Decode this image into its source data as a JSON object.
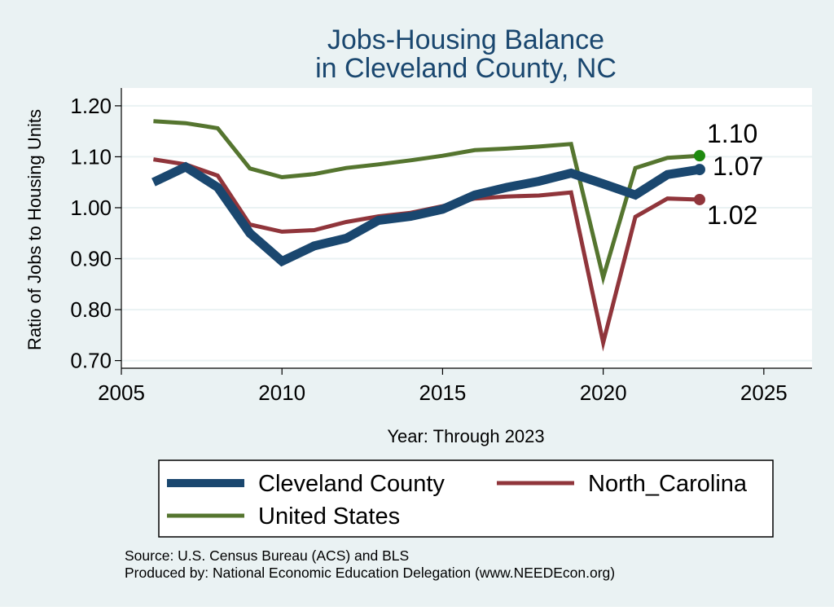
{
  "chart_data": {
    "type": "line",
    "title": [
      "Jobs-Housing Balance",
      "in Cleveland County, NC"
    ],
    "xlabel": "Year: Through 2023",
    "ylabel": "Ratio of Jobs to Housing Units",
    "xlim": [
      2005,
      2026.5
    ],
    "ylim": [
      0.685,
      1.235
    ],
    "xticks": [
      2005,
      2010,
      2015,
      2020,
      2025
    ],
    "yticks": [
      0.7,
      0.8,
      0.9,
      1.0,
      1.1,
      1.2
    ],
    "ytick_labels": [
      "0.70",
      "0.80",
      "0.90",
      "1.00",
      "1.10",
      "1.20"
    ],
    "grid": true,
    "x": [
      2006,
      2007,
      2008,
      2009,
      2010,
      2011,
      2012,
      2013,
      2014,
      2015,
      2016,
      2017,
      2018,
      2019,
      2020,
      2021,
      2022,
      2023
    ],
    "series": [
      {
        "name": "Cleveland County",
        "color": "#1A476F",
        "line_style": "thick",
        "values": [
          1.05,
          1.08,
          1.04,
          0.95,
          0.895,
          0.925,
          0.94,
          0.975,
          0.983,
          0.997,
          1.025,
          1.04,
          1.052,
          1.068,
          1.047,
          1.025,
          1.065,
          1.075
        ],
        "end_label": "1.07",
        "end_marker_color": "#1A476F"
      },
      {
        "name": "North_Carolina",
        "color": "#90353B",
        "line_style": "medium",
        "values": [
          1.095,
          1.085,
          1.063,
          0.967,
          0.953,
          0.956,
          0.972,
          0.983,
          0.99,
          1.003,
          1.018,
          1.022,
          1.024,
          1.03,
          0.735,
          0.982,
          1.018,
          1.016
        ],
        "end_label": "1.02",
        "end_marker_color": "#90353B"
      },
      {
        "name": "United States",
        "color": "#55752F",
        "line_style": "medium",
        "values": [
          1.17,
          1.166,
          1.156,
          1.077,
          1.06,
          1.066,
          1.078,
          1.085,
          1.093,
          1.102,
          1.113,
          1.116,
          1.12,
          1.125,
          0.863,
          1.078,
          1.098,
          1.102
        ],
        "end_label": "1.10",
        "end_marker_color": "#1E8A0E"
      }
    ],
    "legend": {
      "placement": "bottom",
      "entries": [
        "Cleveland County",
        "North_Carolina",
        "United States"
      ]
    },
    "notes": [
      "Source: U.S. Census Bureau (ACS) and BLS",
      "Produced by: National Economic Education Delegation (www.NEEDEcon.org)"
    ]
  }
}
